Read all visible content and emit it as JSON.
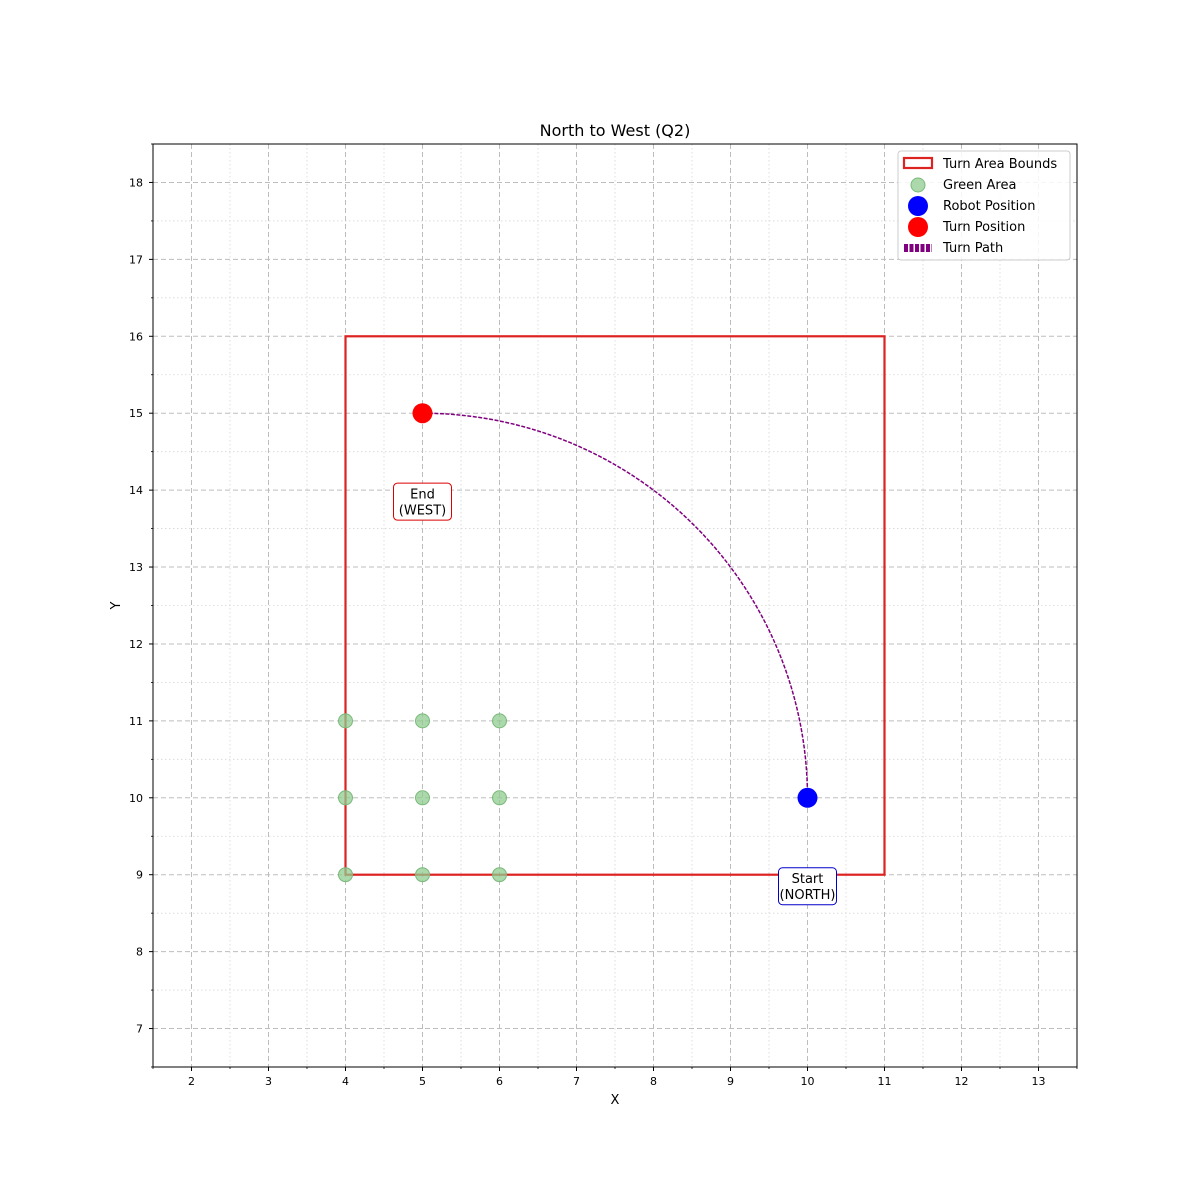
{
  "chart_data": {
    "type": "scatter",
    "title": "North to West (Q2)",
    "xlabel": "X",
    "ylabel": "Y",
    "xlim": [
      1.5,
      13.5
    ],
    "ylim": [
      6.5,
      18.5
    ],
    "xticks": [
      2,
      3,
      4,
      5,
      6,
      7,
      8,
      9,
      10,
      11,
      12,
      13
    ],
    "yticks": [
      7,
      8,
      9,
      10,
      11,
      12,
      13,
      14,
      15,
      16,
      17,
      18
    ],
    "grid": true,
    "legend_position": "top-right",
    "turn_area_bounds": {
      "name": "Turn Area Bounds",
      "x_min": 4,
      "x_max": 11,
      "y_min": 9,
      "y_max": 16,
      "color": "#dd2222"
    },
    "green_area": {
      "name": "Green Area",
      "color": "#8fcc8f",
      "points": [
        [
          4,
          9
        ],
        [
          5,
          9
        ],
        [
          6,
          9
        ],
        [
          4,
          10
        ],
        [
          5,
          10
        ],
        [
          6,
          10
        ],
        [
          4,
          11
        ],
        [
          5,
          11
        ],
        [
          6,
          11
        ]
      ]
    },
    "robot_position": {
      "name": "Robot Position",
      "x": 10,
      "y": 10,
      "color": "#0000ff"
    },
    "turn_position": {
      "name": "Turn Position",
      "x": 5,
      "y": 15,
      "color": "#ff0000"
    },
    "turn_path": {
      "name": "Turn Path",
      "color": "#800080",
      "center": [
        5,
        10
      ],
      "radius_x": 5,
      "radius_y": 5,
      "from_deg": 0,
      "to_deg": 90
    },
    "annotations": [
      {
        "lines": [
          "Start",
          "(NORTH)"
        ],
        "x": 10,
        "y": 8.85,
        "border_color": "#0000cc"
      },
      {
        "lines": [
          "End",
          "(WEST)"
        ],
        "x": 5,
        "y": 13.85,
        "border_color": "#dd0000"
      }
    ],
    "legend": [
      "Turn Area Bounds",
      "Green Area",
      "Robot Position",
      "Turn Position",
      "Turn Path"
    ]
  }
}
